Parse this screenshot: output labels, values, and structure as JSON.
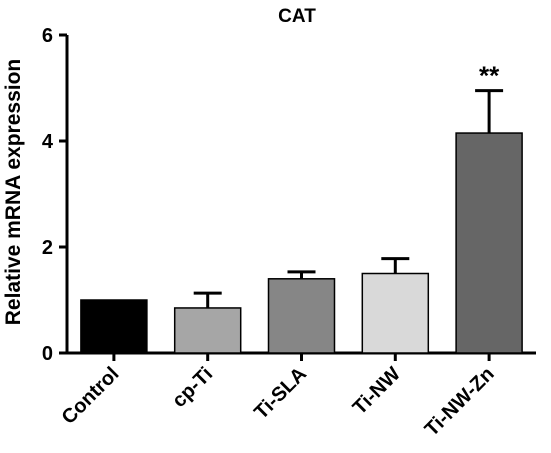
{
  "chart_data": {
    "type": "bar",
    "title": "CAT",
    "xlabel": "",
    "ylabel": "Relative mRNA expression",
    "ylim": [
      0,
      6
    ],
    "yticks": [
      0,
      2,
      4,
      6
    ],
    "categories": [
      "Control",
      "cp-Ti",
      "Ti-SLA",
      "Ti-NW",
      "Ti-NW-Zn"
    ],
    "values": [
      1.0,
      0.85,
      1.4,
      1.5,
      4.15
    ],
    "error_upper": [
      0.0,
      0.28,
      0.13,
      0.28,
      0.8
    ],
    "annotations": [
      "",
      "",
      "",
      "",
      "**"
    ],
    "bar_colors": [
      "#000000",
      "#a6a6a6",
      "#868686",
      "#d9d9d9",
      "#666666"
    ],
    "grid": false,
    "legend": "none"
  }
}
